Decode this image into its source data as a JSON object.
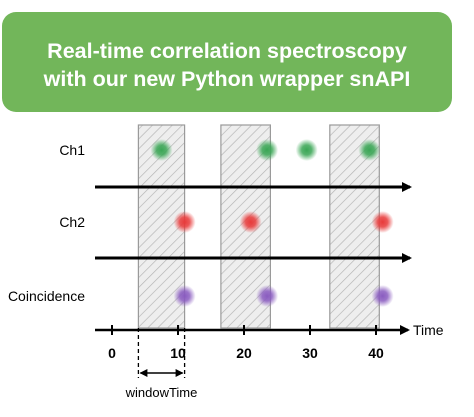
{
  "banner": {
    "line1": "Real-time correlation spectroscopy",
    "line2": "with our new Python wrapper snAPI",
    "color": "#72b65a"
  },
  "diagram": {
    "channels": [
      {
        "label": "Ch1",
        "color": "#3aa655",
        "events": [
          7.5,
          23.5,
          29.5,
          39
        ]
      },
      {
        "label": "Ch2",
        "color": "#e83a3a",
        "events": [
          11,
          21,
          41
        ]
      },
      {
        "label": "Coincidence",
        "color": "#8a5cc0",
        "events": [
          11,
          23.5,
          41
        ]
      }
    ],
    "windows": [
      [
        4,
        11
      ],
      [
        16.5,
        24
      ],
      [
        33,
        40.5
      ]
    ],
    "time_axis": {
      "label": "Time",
      "ticks": [
        {
          "value": 0,
          "label": "0"
        },
        {
          "value": 10,
          "label": "10"
        },
        {
          "value": 20,
          "label": "20"
        },
        {
          "value": 30,
          "label": "30"
        },
        {
          "value": 40,
          "label": "40"
        }
      ]
    },
    "window_label": "windowTime"
  }
}
